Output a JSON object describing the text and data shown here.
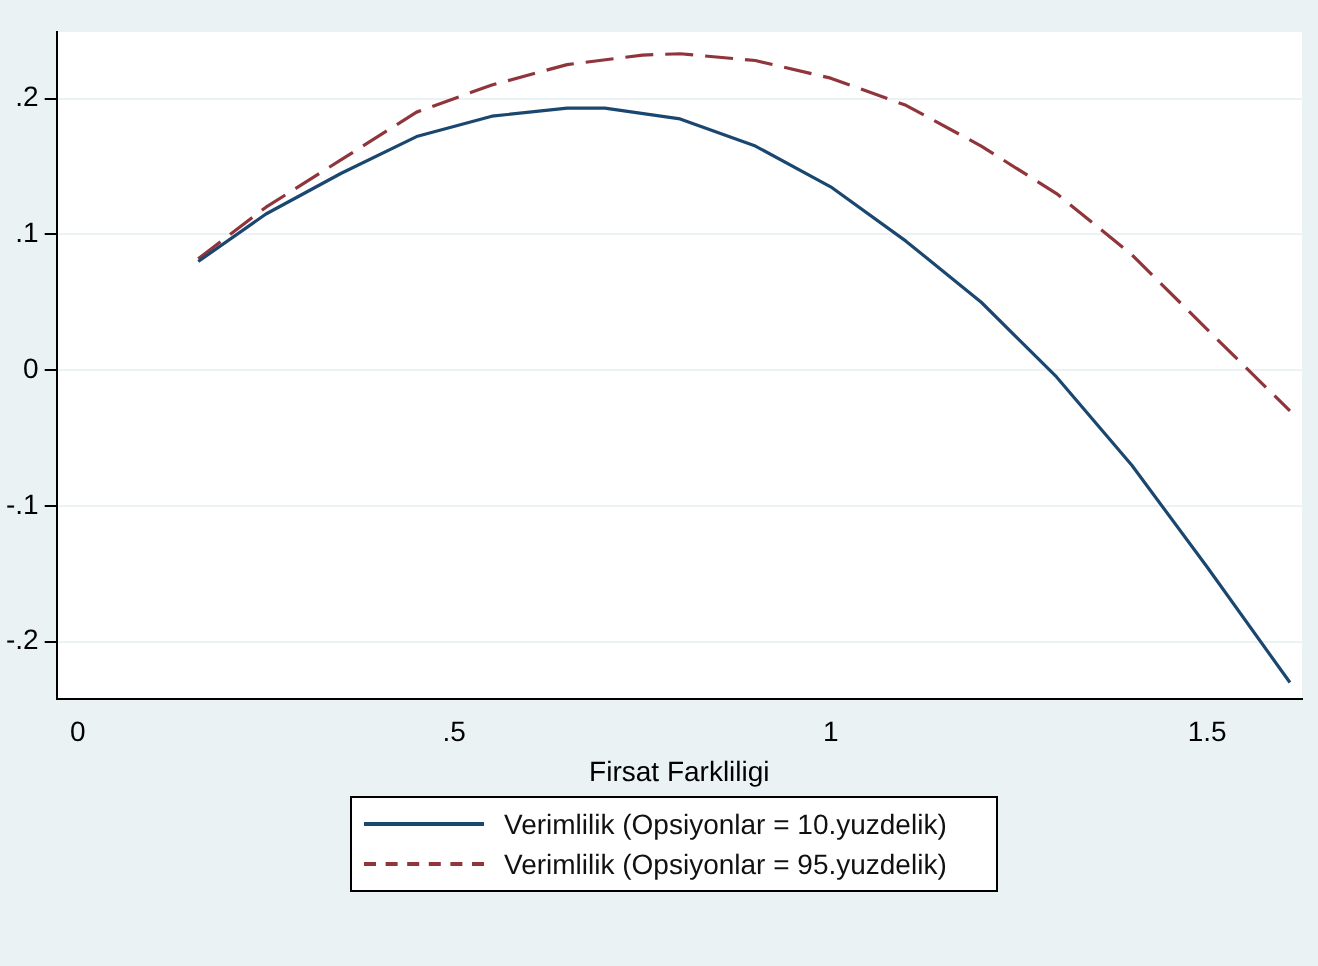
{
  "chart_data": {
    "type": "line",
    "xlabel": "Firsat Farkliligi",
    "xlim": [
      -0.028,
      1.626
    ],
    "xticks": [
      {
        "value": 0,
        "label": "0"
      },
      {
        "value": 0.5,
        "label": ".5"
      },
      {
        "value": 1,
        "label": "1"
      },
      {
        "value": 1.5,
        "label": "1.5"
      }
    ],
    "ylim": [
      -0.242,
      0.249
    ],
    "yticks": [
      {
        "value": -0.2,
        "label": "-.2"
      },
      {
        "value": -0.1,
        "label": "-.1"
      },
      {
        "value": 0,
        "label": "0"
      },
      {
        "value": 0.1,
        "label": ".1"
      },
      {
        "value": 0.2,
        "label": ".2"
      }
    ],
    "grid": "y",
    "legend": "bottom",
    "marker": "none",
    "series": [
      {
        "name": "Verimlilik (Opsiyonlar = 10.yuzdelik)",
        "color": "#1a476f",
        "line_style": "solid",
        "x": [
          0.16,
          0.25,
          0.35,
          0.45,
          0.55,
          0.65,
          0.7,
          0.8,
          0.9,
          1.0,
          1.1,
          1.2,
          1.3,
          1.4,
          1.5,
          1.61
        ],
        "values": [
          0.08,
          0.115,
          0.145,
          0.172,
          0.187,
          0.193,
          0.193,
          0.185,
          0.165,
          0.135,
          0.095,
          0.05,
          -0.005,
          -0.07,
          -0.145,
          -0.23
        ]
      },
      {
        "name": "Verimlilik (Opsiyonlar = 95.yuzdelik)",
        "color": "#90353b",
        "line_style": "dashed",
        "x": [
          0.16,
          0.25,
          0.35,
          0.45,
          0.55,
          0.65,
          0.75,
          0.8,
          0.9,
          1.0,
          1.1,
          1.2,
          1.3,
          1.4,
          1.5,
          1.61
        ],
        "values": [
          0.082,
          0.12,
          0.155,
          0.19,
          0.21,
          0.225,
          0.232,
          0.233,
          0.228,
          0.215,
          0.195,
          0.165,
          0.13,
          0.085,
          0.03,
          -0.03
        ]
      }
    ]
  }
}
